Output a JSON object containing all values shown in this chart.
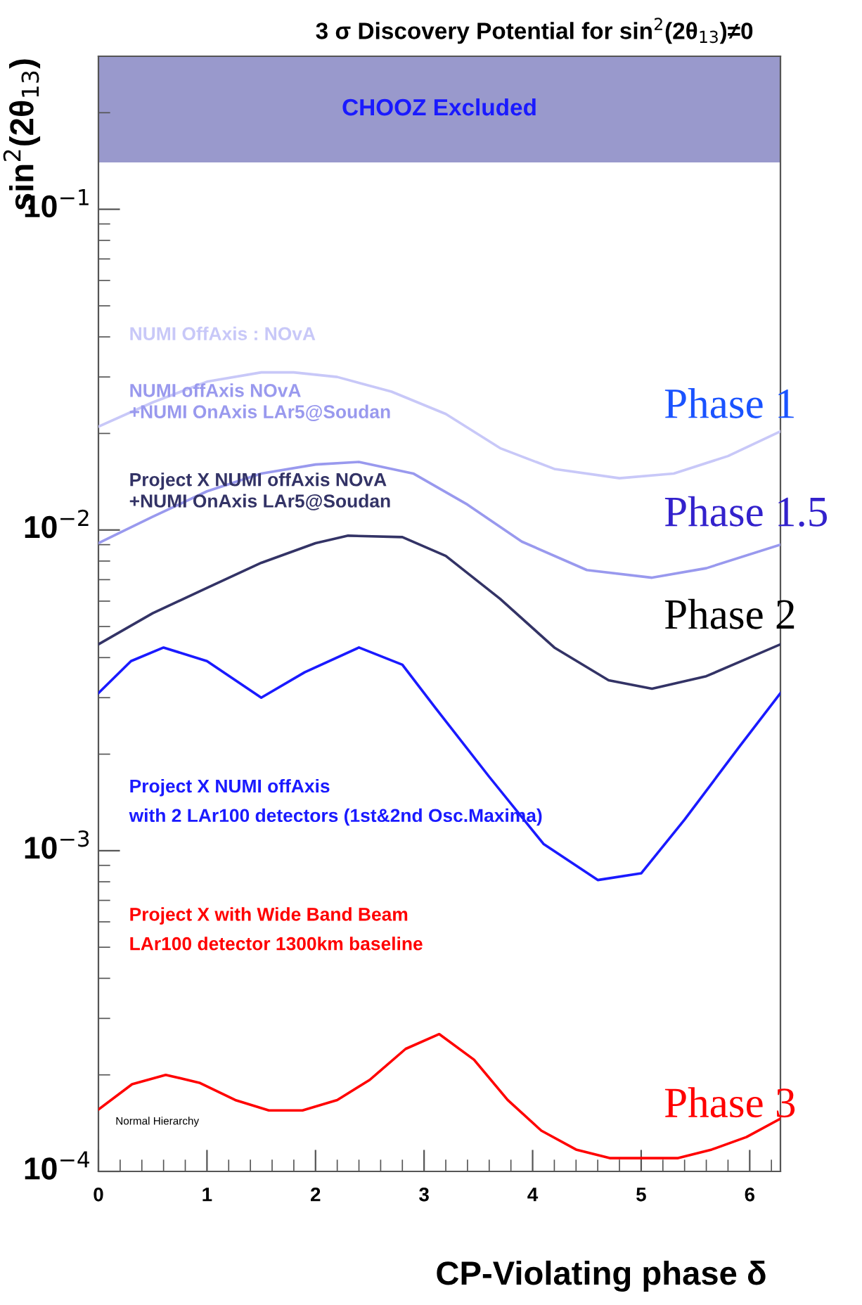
{
  "chart_data": {
    "type": "line",
    "title": "3 σ Discovery Potential for sin$^{2}$(2θ$_{13}$)≠0",
    "xlabel": "CP-Violating phase δ",
    "ylabel": "sin$^{2}$(2θ$_{13}$)",
    "log": "y",
    "xlim": [
      0,
      6.283
    ],
    "xticks": [
      0,
      1,
      2,
      3,
      4,
      5,
      6
    ],
    "ylim": [
      0.0001,
      0.3
    ],
    "yticks": [
      {
        "value": 0.0001,
        "label": "10$^{−4}$"
      },
      {
        "value": 0.001,
        "label": "10$^{−3}$"
      },
      {
        "value": 0.01,
        "label": "10$^{−2}$"
      },
      {
        "value": 0.1,
        "label": "10$^{−1}$"
      }
    ],
    "grid": false,
    "legend": false,
    "marker": "none",
    "line_style": "solid",
    "bands": [
      {
        "axis": "y",
        "from": 0.14,
        "to": 0.3,
        "label": "CHOOZ Excluded",
        "color": "#9999cc"
      }
    ],
    "series": [
      {
        "name": "NUMI OffAxis : NOvA",
        "color": "#c8c8f8",
        "x": [
          0,
          0.5,
          1,
          1.5,
          1.8,
          2.2,
          2.7,
          3.2,
          3.7,
          4.2,
          4.8,
          5.3,
          5.8,
          6.283
        ],
        "values": [
          0.021,
          0.025,
          0.029,
          0.031,
          0.031,
          0.03,
          0.027,
          0.023,
          0.018,
          0.0155,
          0.0145,
          0.015,
          0.017,
          0.0203
        ]
      },
      {
        "name": "NUMI offAxis NOvA\n+NUMI OnAxis LAr5@Soudan",
        "color": "#9999ee",
        "x": [
          0,
          0.5,
          1,
          1.5,
          2,
          2.4,
          2.9,
          3.4,
          3.9,
          4.5,
          5.1,
          5.6,
          6.283
        ],
        "values": [
          0.0091,
          0.011,
          0.0132,
          0.015,
          0.016,
          0.0163,
          0.015,
          0.012,
          0.0092,
          0.0075,
          0.0071,
          0.0076,
          0.009
        ]
      },
      {
        "name": "Project X NUMI offAxis NOvA\n+NUMI OnAxis LAr5@Soudan",
        "color": "#333366",
        "x": [
          0,
          0.5,
          1,
          1.5,
          2,
          2.3,
          2.8,
          3.2,
          3.7,
          4.2,
          4.7,
          5.1,
          5.6,
          6.283
        ],
        "values": [
          0.0044,
          0.0055,
          0.0066,
          0.0079,
          0.0091,
          0.0096,
          0.0095,
          0.0083,
          0.0061,
          0.0043,
          0.0034,
          0.0032,
          0.0035,
          0.0044
        ]
      },
      {
        "name": "Project X NUMI offAxis\nwith 2 LAr100 detectors (1st&2nd Osc.Maxima)",
        "color": "#1a1aff",
        "x": [
          0,
          0.3,
          0.6,
          1,
          1.5,
          1.9,
          2.4,
          2.8,
          3.1,
          3.6,
          4.1,
          4.6,
          5,
          5.4,
          5.9,
          6.283
        ],
        "values": [
          0.0031,
          0.0039,
          0.0043,
          0.0039,
          0.003,
          0.0036,
          0.0043,
          0.0038,
          0.0028,
          0.0017,
          0.00105,
          0.00081,
          0.00085,
          0.00125,
          0.0021,
          0.0031
        ]
      },
      {
        "name": "Project X with Wide Band Beam\nLAr100 detector 1300km baseline",
        "color": "#ff0000",
        "x": [
          0,
          0.31,
          0.62,
          0.93,
          1.26,
          1.57,
          1.88,
          2.2,
          2.5,
          2.83,
          3.14,
          3.46,
          3.77,
          4.08,
          4.4,
          4.71,
          5.03,
          5.34,
          5.65,
          5.97,
          6.283
        ],
        "values": [
          0.000156,
          0.000187,
          0.0002,
          0.000189,
          0.000167,
          0.000155,
          0.000155,
          0.000167,
          0.000193,
          0.000241,
          0.000268,
          0.000223,
          0.000167,
          0.000134,
          0.000117,
          0.00011,
          0.00011,
          0.00011,
          0.000117,
          0.000128,
          0.000146
        ]
      }
    ],
    "annotations": [
      "Phase 1",
      "Phase 1.5",
      "Phase 2",
      "Phase 3",
      "Normal Hierarchy"
    ]
  }
}
